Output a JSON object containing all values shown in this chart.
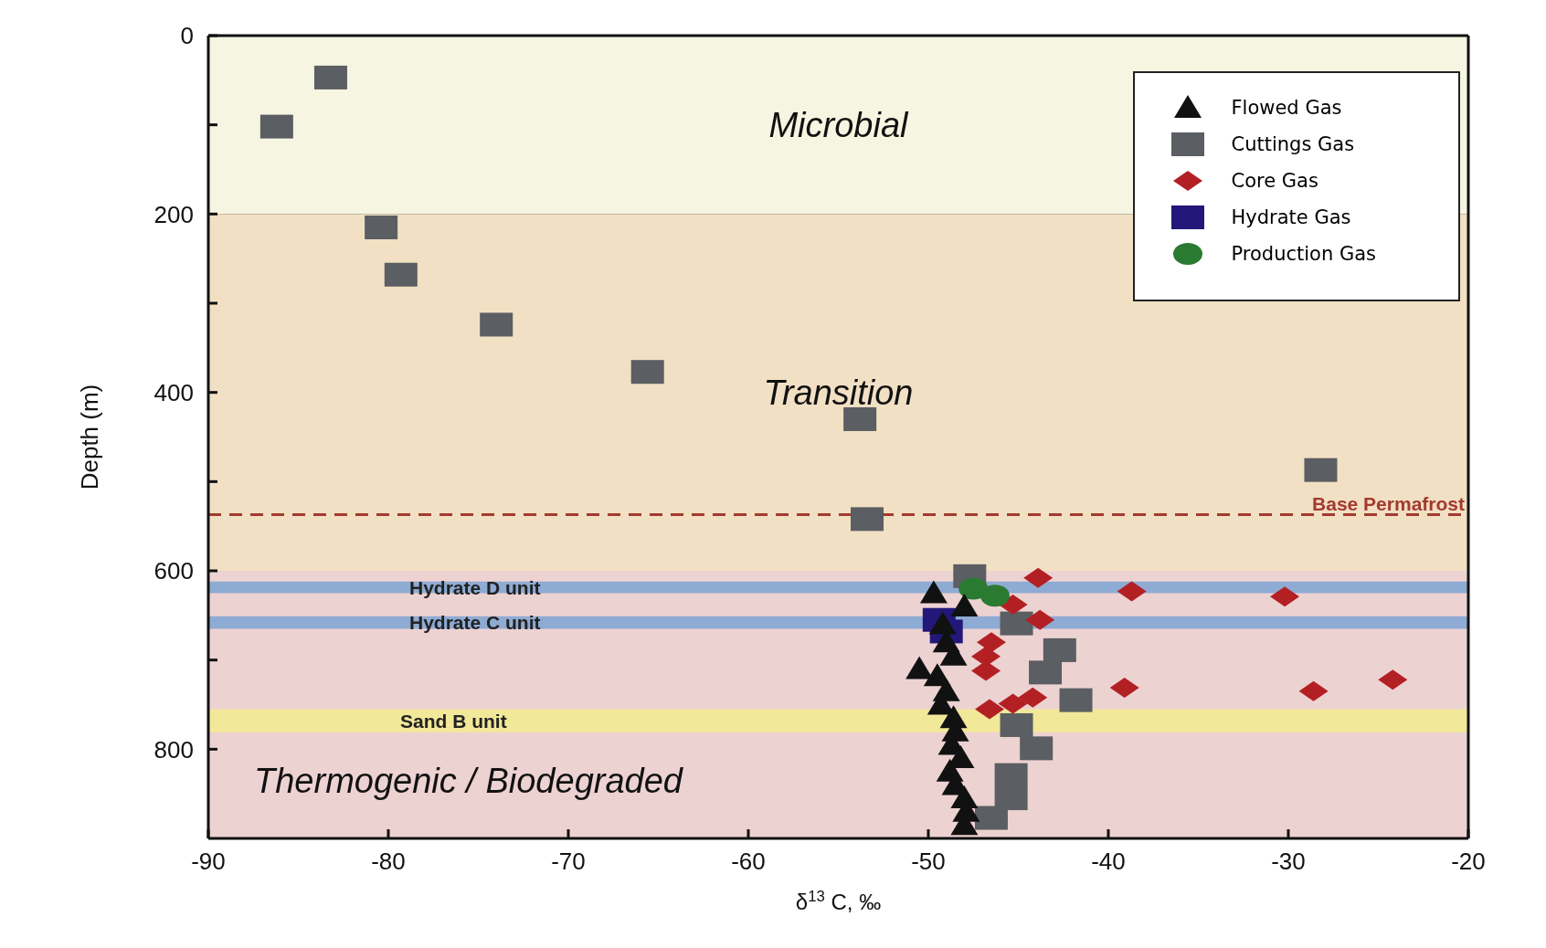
{
  "chart_data": {
    "type": "scatter",
    "xlabel": "δ$^{13}$C, ‰",
    "ylabel": "Depth (m)",
    "xlim": [
      -90,
      -20
    ],
    "xticks": [
      -90,
      -80,
      -70,
      -60,
      -50,
      -40,
      -30,
      -20
    ],
    "ylim": [
      900,
      0
    ],
    "yticks": [
      0,
      {
        "value": 100,
        "label": null
      },
      200,
      {
        "value": 300,
        "label": null
      },
      400,
      {
        "value": 500,
        "label": null
      },
      600,
      {
        "value": 700,
        "label": null
      },
      800
    ],
    "grid": true,
    "legend": "top right",
    "bands": [
      {
        "axis": "y",
        "from": 0,
        "to": 200,
        "label": "Microbial",
        "color": "#f5f5e1"
      },
      {
        "axis": "y",
        "from": 200,
        "to": 600,
        "label": "Transition",
        "color": "#f1e0c4"
      },
      {
        "axis": "y",
        "from": 600,
        "to": 900,
        "label": "Thermogenic / Biodegraded",
        "color": "#edd2d2"
      },
      {
        "axis": "y",
        "from": 612,
        "to": 625,
        "label": "Hydrate D unit",
        "color": "#8eabd3"
      },
      {
        "axis": "y",
        "from": 651,
        "to": 665,
        "label": "Hydrate C unit",
        "color": "#8eabd3"
      },
      {
        "axis": "y",
        "from": 755,
        "to": 781,
        "label": "Sand B unit",
        "color": "#f2e899"
      }
    ],
    "ref_lines": [
      {
        "axis": "y",
        "value": 537,
        "label": "Base Permafrost",
        "color": "#a33a2e",
        "line_style": "dashed"
      }
    ],
    "series": [
      {
        "name": "Flowed Gas",
        "color": "#111111",
        "marker": "triangle",
        "x": [
          -49.7,
          -48.0,
          -49.2,
          -49.0,
          -48.6,
          -50.5,
          -49.5,
          -49.0,
          -49.3,
          -48.6,
          -48.5,
          -48.7,
          -48.2,
          -48.8,
          -48.5,
          -48.0,
          -47.9,
          -48.0
        ],
        "values": [
          625,
          640,
          660,
          680,
          695,
          710,
          718,
          735,
          750,
          765,
          780,
          795,
          810,
          825,
          840,
          855,
          870,
          885
        ]
      },
      {
        "name": "Cuttings Gas",
        "color": "#5b5e62",
        "marker": "square",
        "x": [
          -83.2,
          -86.2,
          -80.4,
          -79.3,
          -74.0,
          -65.6,
          -53.8,
          -28.2,
          -53.4,
          -47.7,
          -45.1,
          -42.7,
          -43.5,
          -41.8,
          -45.1,
          -44.0,
          -45.4,
          -45.4,
          -46.5
        ],
        "values": [
          47,
          102,
          215,
          268,
          324,
          377,
          430,
          487,
          542,
          606,
          659,
          689,
          714,
          745,
          773,
          799,
          829,
          855,
          877
        ]
      },
      {
        "name": "Core Gas",
        "color": "#b32024",
        "marker": "diamond",
        "x": [
          -43.9,
          -38.7,
          -30.2,
          -45.3,
          -43.8,
          -46.5,
          -46.8,
          -46.8,
          -39.1,
          -28.6,
          -24.2,
          -46.6,
          -45.3,
          -44.2
        ],
        "values": [
          608,
          623,
          629,
          638,
          655,
          680,
          696,
          712,
          731,
          735,
          722,
          755,
          749,
          742
        ]
      },
      {
        "name": "Hydrate Gas",
        "color": "#23187a",
        "marker": "square",
        "x": [
          -49.4,
          -49.0
        ],
        "values": [
          655,
          668
        ]
      },
      {
        "name": "Production Gas",
        "color": "#2a7a32",
        "marker": "circle",
        "x": [
          -47.5,
          -46.3
        ],
        "values": [
          620,
          628
        ]
      }
    ]
  }
}
